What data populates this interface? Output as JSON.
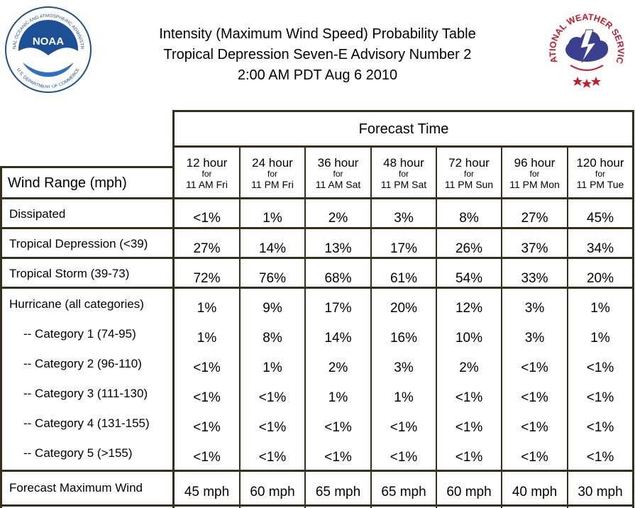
{
  "title": {
    "line1": "Intensity (Maximum Wind Speed) Probability Table",
    "line2": "Tropical Depression Seven-E Advisory Number 2",
    "line3": "2:00 AM PDT Aug 6 2010"
  },
  "logos": {
    "noaa": {
      "text": "NOAA",
      "ring_text": "NATIONAL OCEANIC AND ATMOSPHERIC ADMINISTRATION",
      "ring_text_bottom": "U.S. DEPARTMENT OF COMMERCE",
      "color": "#1d4f97"
    },
    "nws": {
      "ring_text": "NATIONAL WEATHER SERVICE",
      "color": "#c8182a",
      "cloud_color": "#3a3f8f"
    }
  },
  "table": {
    "forecast_time_label": "Forecast Time",
    "wind_range_label": "Wind Range (mph)",
    "columns": [
      {
        "hours": "12 hour",
        "for": "for",
        "time": "11 AM Fri"
      },
      {
        "hours": "24 hour",
        "for": "for",
        "time": "11 PM Fri"
      },
      {
        "hours": "36 hour",
        "for": "for",
        "time": "11 AM Sat"
      },
      {
        "hours": "48 hour",
        "for": "for",
        "time": "11 PM Sat"
      },
      {
        "hours": "72 hour",
        "for": "for",
        "time": "11 PM Sun"
      },
      {
        "hours": "96 hour",
        "for": "for",
        "time": "11 PM Mon"
      },
      {
        "hours": "120 hour",
        "for": "for",
        "time": "11 PM Tue"
      }
    ],
    "rows": [
      {
        "label": "Dissipated",
        "values": [
          "<1%",
          "1%",
          "2%",
          "3%",
          "8%",
          "27%",
          "45%"
        ]
      },
      {
        "label": "Tropical Depression (<39)",
        "values": [
          "27%",
          "14%",
          "13%",
          "17%",
          "26%",
          "37%",
          "34%"
        ]
      },
      {
        "label": "Tropical Storm (39-73)",
        "values": [
          "72%",
          "76%",
          "68%",
          "61%",
          "54%",
          "33%",
          "20%"
        ]
      },
      {
        "label": "Hurricane (all categories)",
        "values": [
          "1%",
          "9%",
          "17%",
          "20%",
          "12%",
          "3%",
          "1%"
        ]
      },
      {
        "label": "-- Category 1 (74-95)",
        "values": [
          "1%",
          "8%",
          "14%",
          "16%",
          "10%",
          "3%",
          "1%"
        ]
      },
      {
        "label": "-- Category 2 (96-110)",
        "values": [
          "<1%",
          "1%",
          "2%",
          "3%",
          "2%",
          "<1%",
          "<1%"
        ]
      },
      {
        "label": "-- Category 3 (111-130)",
        "values": [
          "<1%",
          "<1%",
          "1%",
          "1%",
          "<1%",
          "<1%",
          "<1%"
        ]
      },
      {
        "label": "-- Category 4 (131-155)",
        "values": [
          "<1%",
          "<1%",
          "<1%",
          "<1%",
          "<1%",
          "<1%",
          "<1%"
        ]
      },
      {
        "label": "-- Category 5 (>155)",
        "values": [
          "<1%",
          "<1%",
          "<1%",
          "<1%",
          "<1%",
          "<1%",
          "<1%"
        ]
      },
      {
        "label": "Forecast Maximum Wind",
        "values": [
          "45 mph",
          "60 mph",
          "65 mph",
          "65 mph",
          "60 mph",
          "40 mph",
          "30 mph"
        ]
      }
    ]
  }
}
